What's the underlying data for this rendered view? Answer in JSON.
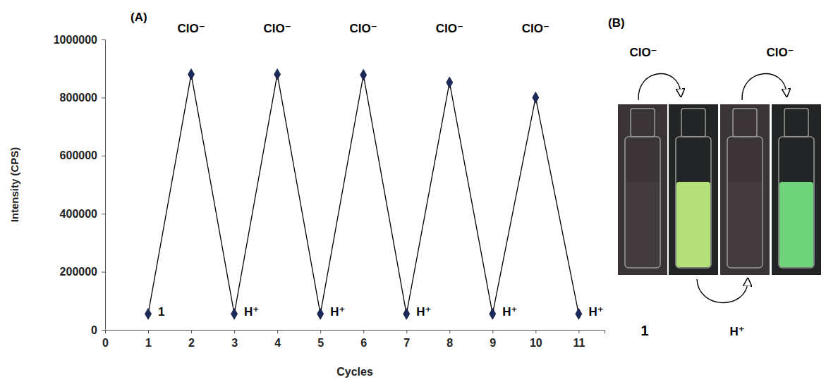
{
  "chart_data": {
    "type": "line",
    "panel": "(A)",
    "x_label": "Cycles",
    "y_label": "Intensity (CPS)",
    "x": [
      1,
      2,
      3,
      4,
      5,
      6,
      7,
      8,
      9,
      10,
      11
    ],
    "values": [
      55000,
      880000,
      55000,
      880000,
      55000,
      878000,
      55000,
      852000,
      55000,
      800000,
      55000
    ],
    "point_labels": [
      "1",
      "ClO⁻",
      "H⁺",
      "ClO⁻",
      "H⁺",
      "ClO⁻",
      "H⁺",
      "ClO⁻",
      "H⁺",
      "ClO⁻",
      "H⁺"
    ],
    "color": "#000000",
    "marker": "diamond",
    "xlim": [
      0,
      11.6
    ],
    "xticks": [
      0,
      1,
      2,
      3,
      4,
      5,
      6,
      7,
      8,
      9,
      10,
      11
    ],
    "ylim": [
      0,
      1000000
    ],
    "yticks": [
      0,
      200000,
      400000,
      600000,
      800000,
      1000000
    ],
    "grid": false
  },
  "panel_b": {
    "panel": "(B)",
    "top_arrow_labels": [
      "ClO⁻",
      "ClO⁻"
    ],
    "bottom_arrow_label": "H⁺",
    "first_vial_label": "1",
    "fluorescent": [
      false,
      true,
      false,
      true
    ]
  }
}
